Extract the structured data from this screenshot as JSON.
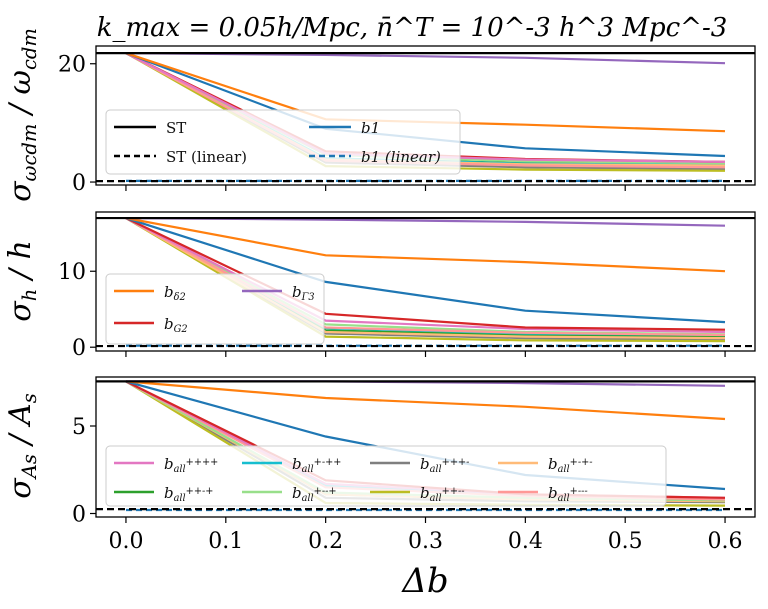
{
  "chart_data": {
    "type": "line",
    "title": "k_max = 0.05h/Mpc, n̄^T = 10^-3 h^3 Mpc^-3",
    "xlabel": "Δb",
    "x": [
      0.0,
      0.2,
      0.4,
      0.6
    ],
    "xlim": [
      -0.03,
      0.63
    ],
    "xticks": [
      "0.0",
      "0.1",
      "0.2",
      "0.3",
      "0.4",
      "0.5",
      "0.6"
    ],
    "colors": {
      "ST": "#000000",
      "b1": "#1f77b4",
      "bd2": "#ff7f0e",
      "bG2": "#d62728",
      "bG3": "#9467bd",
      "pppp": "#e377c2",
      "pppm": "#7f7f7f",
      "ppmp": "#2ca02c",
      "ppmm": "#bcbd22",
      "pmpp": "#17becf",
      "pmpm": "#ffbb78",
      "pmmp": "#98df8a",
      "pmmm": "#ff9896"
    },
    "panels": [
      {
        "ylabel": "σ_ωcdm / ω_cdm",
        "ylim": [
          -0.5,
          23
        ],
        "yticks": [
          0,
          20
        ],
        "hlines": [
          {
            "name": "ST",
            "value": 21.8,
            "style": "solid"
          },
          {
            "name": "ST (linear)",
            "value": 0.15,
            "style": "dashed"
          }
        ],
        "series": [
          {
            "name": "b1 (linear)",
            "key": "b1",
            "dashed": true,
            "values": [
              0.2,
              0.2,
              0.2,
              0.2
            ]
          },
          {
            "name": "b_all^{+++-}",
            "key": "pppm",
            "values": [
              21.8,
              3.3,
              2.5,
              2.2
            ]
          },
          {
            "name": "b_all^{++-+}",
            "key": "ppmp",
            "values": [
              21.8,
              4.0,
              3.2,
              3.0
            ]
          },
          {
            "name": "b_all^{++--}",
            "key": "ppmm",
            "values": [
              21.8,
              2.7,
              2.1,
              1.9
            ]
          },
          {
            "name": "b_all^{+-++}",
            "key": "pmpp",
            "values": [
              21.8,
              4.0,
              3.1,
              2.9
            ]
          },
          {
            "name": "b_all^{+-+-}",
            "key": "pmpm",
            "values": [
              21.8,
              3.8,
              3.0,
              2.8
            ]
          },
          {
            "name": "b_all^{+--+}",
            "key": "pmmp",
            "values": [
              21.8,
              4.6,
              3.5,
              3.2
            ]
          },
          {
            "name": "b_all^{+---}",
            "key": "pmmm",
            "values": [
              21.8,
              3.6,
              2.8,
              2.5
            ]
          },
          {
            "name": "b_G2",
            "key": "bG2",
            "values": [
              21.8,
              5.2,
              3.9,
              3.4
            ]
          },
          {
            "name": "b_all^{++++}",
            "key": "pppp",
            "values": [
              21.8,
              4.8,
              3.8,
              3.4
            ]
          },
          {
            "name": "b1",
            "key": "b1",
            "values": [
              21.8,
              9.0,
              5.7,
              4.4
            ]
          },
          {
            "name": "b_δ2",
            "key": "bd2",
            "values": [
              21.8,
              10.6,
              9.7,
              8.6
            ]
          },
          {
            "name": "b_Γ3",
            "key": "bG3",
            "values": [
              21.8,
              21.5,
              21.0,
              20.1
            ]
          }
        ],
        "legend": {
          "position": "lower-left",
          "entries": [
            {
              "label": "ST",
              "key": "ST",
              "dashed": false
            },
            {
              "label": "b1",
              "key": "b1",
              "dashed": false
            },
            {
              "label": "ST (linear)",
              "key": "ST",
              "dashed": true
            },
            {
              "label": "b1 (linear)",
              "key": "b1",
              "dashed": true
            }
          ]
        }
      },
      {
        "ylabel": "σ_h / h",
        "ylim": [
          -0.5,
          17.8
        ],
        "yticks": [
          0,
          10
        ],
        "hlines": [
          {
            "name": "ST",
            "value": 17.0,
            "style": "solid"
          },
          {
            "name": "ST (linear)",
            "value": 0.15,
            "style": "dashed"
          }
        ],
        "series": [
          {
            "name": "b1 (linear)",
            "key": "b1",
            "dashed": true,
            "values": [
              0.2,
              0.2,
              0.2,
              0.2
            ]
          },
          {
            "name": "b_all^{+++-}",
            "key": "pppm",
            "values": [
              17.0,
              1.8,
              1.2,
              1.0
            ]
          },
          {
            "name": "b_all^{++-+}",
            "key": "ppmp",
            "values": [
              17.0,
              2.2,
              1.6,
              1.4
            ]
          },
          {
            "name": "b_all^{++--}",
            "key": "ppmm",
            "values": [
              17.0,
              1.4,
              0.9,
              0.8
            ]
          },
          {
            "name": "b_all^{+-++}",
            "key": "pmpp",
            "values": [
              17.0,
              2.5,
              1.8,
              1.6
            ]
          },
          {
            "name": "b_all^{+-+-}",
            "key": "pmpm",
            "values": [
              17.0,
              2.0,
              1.4,
              1.2
            ]
          },
          {
            "name": "b_all^{+--+}",
            "key": "pmmp",
            "values": [
              17.0,
              3.0,
              2.0,
              1.7
            ]
          },
          {
            "name": "b_all^{+---}",
            "key": "pmmm",
            "values": [
              17.0,
              2.6,
              1.9,
              1.6
            ]
          },
          {
            "name": "b_all^{++++}",
            "key": "pppp",
            "values": [
              17.0,
              3.5,
              2.4,
              2.0
            ]
          },
          {
            "name": "b_G2",
            "key": "bG2",
            "values": [
              17.0,
              4.4,
              2.6,
              2.3
            ]
          },
          {
            "name": "b1",
            "key": "b1",
            "values": [
              17.0,
              8.6,
              4.8,
              3.3
            ]
          },
          {
            "name": "b_δ2",
            "key": "bd2",
            "values": [
              17.0,
              12.1,
              11.2,
              10.0
            ]
          },
          {
            "name": "b_Γ3",
            "key": "bG3",
            "values": [
              17.0,
              16.8,
              16.5,
              16.0
            ]
          }
        ],
        "legend": {
          "position": "lower-left",
          "entries": [
            {
              "label": "b_δ2",
              "key": "bd2",
              "dashed": false
            },
            {
              "label": "b_Γ3",
              "key": "bG3",
              "dashed": false
            },
            {
              "label": "b_G2",
              "key": "bG2",
              "dashed": false
            }
          ]
        }
      },
      {
        "ylabel": "σ_As / A_s",
        "ylim": [
          -0.2,
          7.8
        ],
        "yticks": [
          0,
          5
        ],
        "hlines": [
          {
            "name": "ST",
            "value": 7.55,
            "style": "solid"
          },
          {
            "name": "ST (linear)",
            "value": 0.25,
            "style": "dashed"
          }
        ],
        "series": [
          {
            "name": "b1 (linear)",
            "key": "b1",
            "dashed": true,
            "values": [
              0.2,
              0.2,
              0.2,
              0.2
            ]
          },
          {
            "name": "b_all^{+++-}",
            "key": "pppm",
            "values": [
              7.55,
              0.9,
              0.7,
              0.65
            ]
          },
          {
            "name": "b_all^{++-+}",
            "key": "ppmp",
            "values": [
              7.55,
              1.1,
              0.8,
              0.7
            ]
          },
          {
            "name": "b_all^{++--}",
            "key": "ppmm",
            "values": [
              7.55,
              0.6,
              0.5,
              0.45
            ]
          },
          {
            "name": "b_all^{+-++}",
            "key": "pmpp",
            "values": [
              7.55,
              1.6,
              1.0,
              0.8
            ]
          },
          {
            "name": "b_all^{+-+-}",
            "key": "pmpm",
            "values": [
              7.55,
              1.1,
              0.8,
              0.7
            ]
          },
          {
            "name": "b_all^{+--+}",
            "key": "pmmp",
            "values": [
              7.55,
              1.2,
              0.9,
              0.75
            ]
          },
          {
            "name": "b_all^{+---}",
            "key": "pmmm",
            "values": [
              7.55,
              1.5,
              1.0,
              0.8
            ]
          },
          {
            "name": "b_all^{++++}",
            "key": "pppp",
            "values": [
              7.55,
              1.7,
              1.1,
              0.9
            ]
          },
          {
            "name": "b_G2",
            "key": "bG2",
            "values": [
              7.55,
              1.9,
              1.1,
              0.9
            ]
          },
          {
            "name": "b1",
            "key": "b1",
            "values": [
              7.55,
              4.4,
              2.2,
              1.4
            ]
          },
          {
            "name": "b_δ2",
            "key": "bd2",
            "values": [
              7.55,
              6.6,
              6.1,
              5.4
            ]
          },
          {
            "name": "b_Γ3",
            "key": "bG3",
            "values": [
              7.55,
              7.55,
              7.45,
              7.3
            ]
          }
        ],
        "legend": {
          "position": "lower-left",
          "entries": [
            {
              "label": "b_all^{++++}",
              "key": "pppp",
              "dashed": false
            },
            {
              "label": "b_all^{++-+}",
              "key": "ppmp",
              "dashed": false
            },
            {
              "label": "b_all^{+-++}",
              "key": "pmpp",
              "dashed": false
            },
            {
              "label": "b_all^{+--+}",
              "key": "pmmp",
              "dashed": false
            },
            {
              "label": "b_all^{+++-}",
              "key": "pppm",
              "dashed": false
            },
            {
              "label": "b_all^{++--}",
              "key": "ppmm",
              "dashed": false
            },
            {
              "label": "b_all^{+-+-}",
              "key": "pmpm",
              "dashed": false
            },
            {
              "label": "b_all^{+---}",
              "key": "pmmm",
              "dashed": false
            }
          ]
        }
      }
    ]
  }
}
